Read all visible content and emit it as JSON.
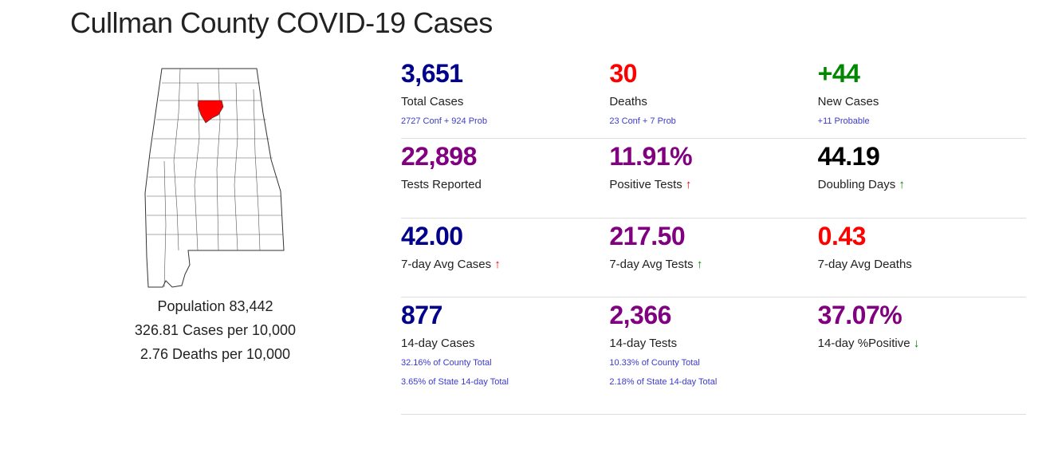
{
  "title": "Cullman County COVID-19 Cases",
  "left": {
    "population": "Population 83,442",
    "cases_per": "326.81 Cases per 10,000",
    "deaths_per": "2.76 Deaths per 10,000"
  },
  "colors": {
    "navy": "#00008b",
    "red": "#ff0000",
    "green": "#008800",
    "purple": "#800080",
    "black": "#000000",
    "sub": "#3a3acc"
  },
  "rows": [
    [
      {
        "value": "3,651",
        "label": "Total Cases",
        "subs": [
          "2727 Conf + 924 Prob"
        ],
        "color": "#00008b",
        "arrow": ""
      },
      {
        "value": "30",
        "label": "Deaths",
        "subs": [
          "23 Conf + 7 Prob"
        ],
        "color": "#ff0000",
        "arrow": ""
      },
      {
        "value": "+44",
        "label": "New Cases",
        "subs": [
          "+11 Probable"
        ],
        "color": "#008800",
        "arrow": ""
      }
    ],
    [
      {
        "value": "22,898",
        "label": "Tests Reported",
        "subs": [],
        "color": "#800080",
        "arrow": ""
      },
      {
        "value": "11.91%",
        "label": "Positive Tests",
        "subs": [],
        "color": "#800080",
        "arrow": "up-red"
      },
      {
        "value": "44.19",
        "label": "Doubling Days",
        "subs": [],
        "color": "#000000",
        "arrow": "up-green"
      }
    ],
    [
      {
        "value": "42.00",
        "label": "7-day Avg Cases",
        "subs": [],
        "color": "#00008b",
        "arrow": "up-red"
      },
      {
        "value": "217.50",
        "label": "7-day Avg Tests",
        "subs": [],
        "color": "#800080",
        "arrow": "up-green"
      },
      {
        "value": "0.43",
        "label": "7-day Avg Deaths",
        "subs": [],
        "color": "#ff0000",
        "arrow": ""
      }
    ],
    [
      {
        "value": "877",
        "label": "14-day Cases",
        "subs": [
          "32.16% of County Total",
          "3.65% of State 14-day Total"
        ],
        "color": "#00008b",
        "arrow": ""
      },
      {
        "value": "2,366",
        "label": "14-day Tests",
        "subs": [
          "10.33% of County Total",
          "2.18% of State 14-day Total"
        ],
        "color": "#800080",
        "arrow": ""
      },
      {
        "value": "37.07%",
        "label": "14-day %Positive",
        "subs": [],
        "color": "#800080",
        "arrow": "down-green"
      }
    ]
  ]
}
